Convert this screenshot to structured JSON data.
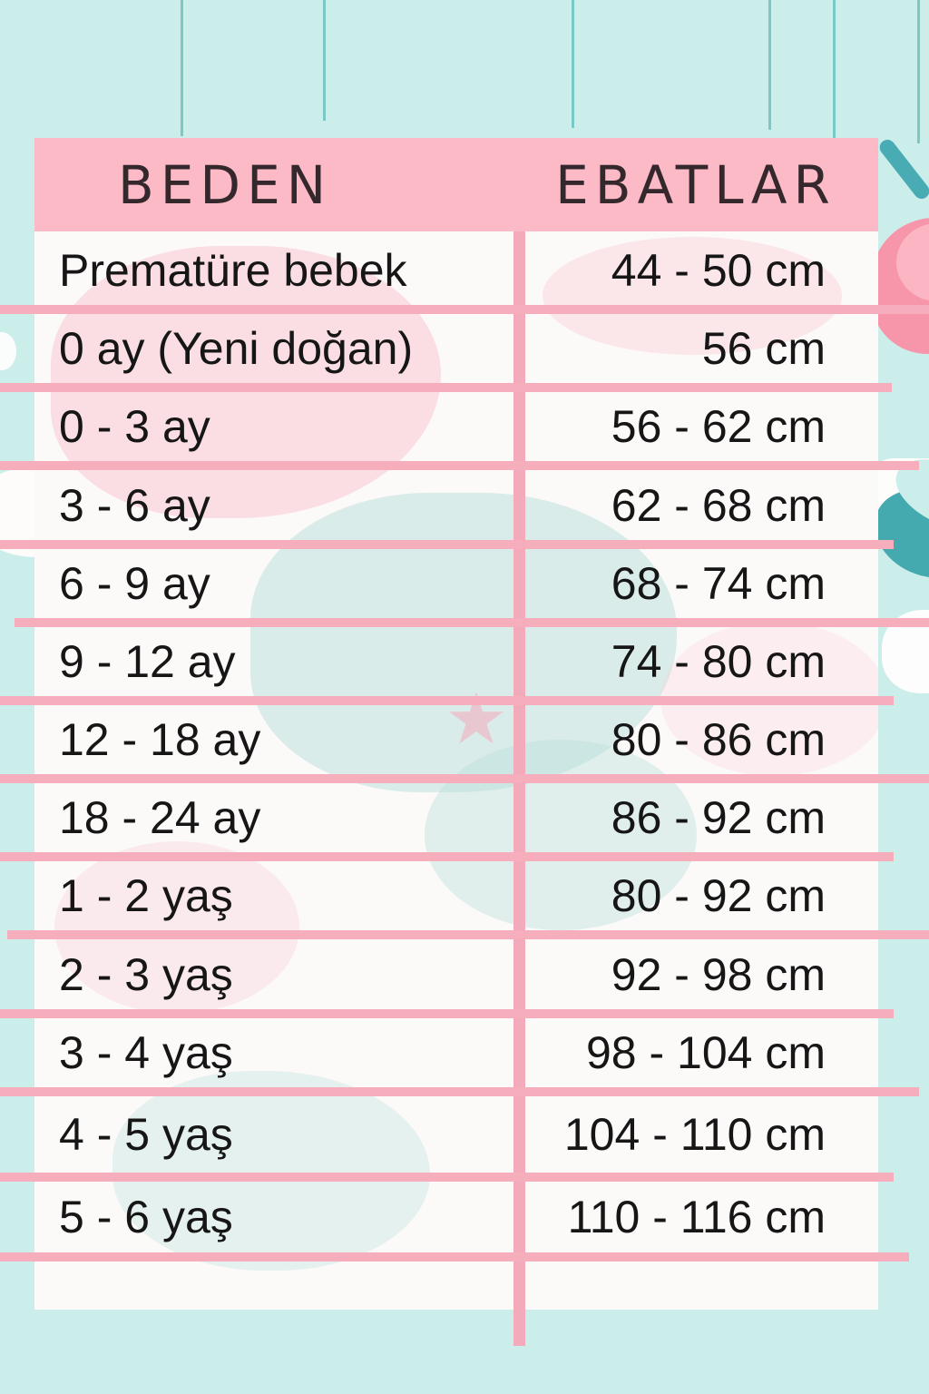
{
  "title_context": "baby clothing size chart (Turkish)",
  "header": {
    "size_col": "BEDEN",
    "dims_col": "EBATLAR"
  },
  "rows": [
    {
      "size": "Prematüre bebek",
      "range": "44 - 50 cm"
    },
    {
      "size": "0 ay (Yeni doğan)",
      "range": "56 cm"
    },
    {
      "size": "0 - 3 ay",
      "range": "56 - 62 cm"
    },
    {
      "size": "3 - 6 ay",
      "range": "62 - 68 cm"
    },
    {
      "size": "6 - 9 ay",
      "range": "68 - 74 cm"
    },
    {
      "size": "9 - 12 ay",
      "range": "74 - 80 cm"
    },
    {
      "size": "12 - 18 ay",
      "range": "80 - 86 cm"
    },
    {
      "size": "18 - 24 ay",
      "range": "86 - 92 cm"
    },
    {
      "size": "1 - 2 yaş",
      "range": "80 - 92 cm"
    },
    {
      "size": "2 - 3 yaş",
      "range": "92 - 98 cm"
    },
    {
      "size": "3 - 4 yaş",
      "range": "98 - 104 cm"
    },
    {
      "size": "4 - 5 yaş",
      "range": "104 - 110 cm"
    },
    {
      "size": "5 - 6 yaş",
      "range": "110 - 116 cm"
    }
  ],
  "decorations": {
    "star_glyph": "★",
    "names": [
      "hanging-strings",
      "branch-shape",
      "pink-bib-blob",
      "clouds",
      "teal-wave",
      "ghost-bib",
      "ghost-onesie",
      "ghost-star"
    ]
  },
  "palette": {
    "background_teal": "#cbeeea",
    "header_pink": "#fcb9c6",
    "divider_pink": "#f6aebd",
    "body_white": "#fcf9f9",
    "text_dark": "#161616",
    "header_text": "#35282d",
    "string_teal": "#7bc8c5",
    "deco_teal_dark": "#45a9b0",
    "deco_pink": "#f795ab"
  },
  "chart_data": {
    "type": "table",
    "title": "BEDEN / EBATLAR",
    "columns": [
      "BEDEN",
      "EBATLAR"
    ],
    "rows": [
      [
        "Prematüre bebek",
        "44 - 50 cm"
      ],
      [
        "0 ay (Yeni doğan)",
        "56 cm"
      ],
      [
        "0 - 3 ay",
        "56 - 62 cm"
      ],
      [
        "3 - 6 ay",
        "62 - 68 cm"
      ],
      [
        "6 - 9 ay",
        "68 - 74 cm"
      ],
      [
        "9 - 12 ay",
        "74 - 80 cm"
      ],
      [
        "12 - 18 ay",
        "80 - 86 cm"
      ],
      [
        "18 - 24 ay",
        "86 - 92 cm"
      ],
      [
        "1 - 2 yaş",
        "80 - 92 cm"
      ],
      [
        "2 - 3 yaş",
        "92 - 98 cm"
      ],
      [
        "3 - 4 yaş",
        "98 - 104 cm"
      ],
      [
        "4 - 5 yaş",
        "104 - 110 cm"
      ],
      [
        "5 - 6 yaş",
        "110 - 116 cm"
      ]
    ]
  }
}
